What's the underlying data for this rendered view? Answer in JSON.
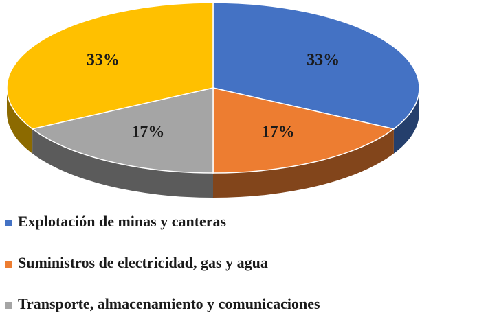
{
  "chart_data": {
    "type": "pie3d",
    "categories": [
      "Explotación de minas y canteras",
      "Suministros de electricidad, gas y agua",
      "Transporte, almacenamiento y comunicaciones",
      null
    ],
    "values": [
      33,
      17,
      17,
      33
    ],
    "value_labels": [
      "33%",
      "17%",
      "17%",
      "33%"
    ],
    "colors": [
      "#4472c4",
      "#ed7d31",
      "#a5a5a5",
      "#ffc000"
    ],
    "legend": "bottom"
  }
}
